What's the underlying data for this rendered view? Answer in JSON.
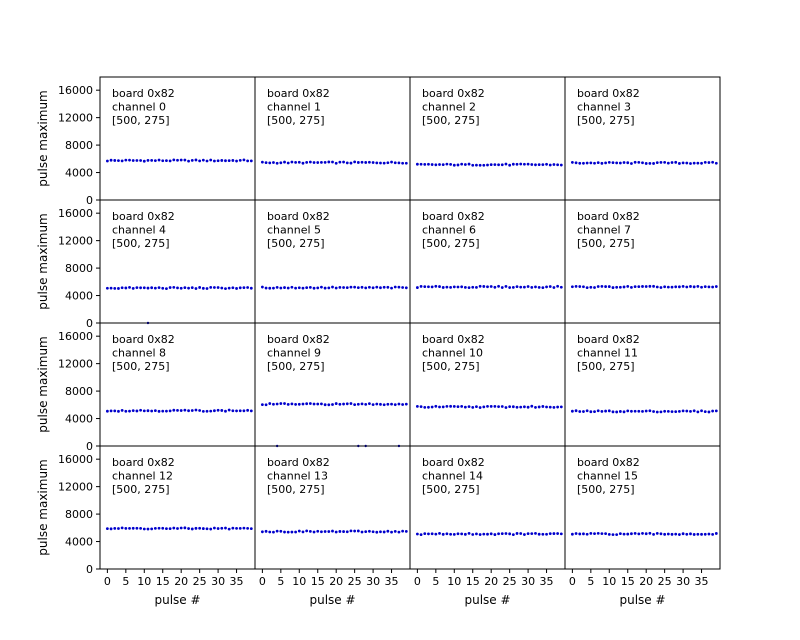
{
  "chart_data": {
    "type": "scatter",
    "layout": {
      "rows": 4,
      "cols": 4
    },
    "xlabel": "pulse #",
    "ylabel": "pulse maximum",
    "xlim": [
      -2,
      40
    ],
    "ylim": [
      0,
      17920
    ],
    "xticks": [
      0,
      5,
      10,
      15,
      20,
      25,
      30,
      35
    ],
    "yticks": [
      0,
      4000,
      8000,
      12000,
      16000
    ],
    "yticklabels": [
      "0",
      "4000",
      "8000",
      "12000",
      "16000"
    ],
    "marker_color": "#0000cc",
    "n_pulses": 40,
    "panels": [
      {
        "channel": 0,
        "board": "board 0x82",
        "label": "channel 0",
        "range": "[500, 275]",
        "baseline": 5750,
        "amplitude": 100,
        "outliers": []
      },
      {
        "channel": 1,
        "board": "board 0x82",
        "label": "channel 1",
        "range": "[500, 275]",
        "baseline": 5450,
        "amplitude": 100,
        "outliers": []
      },
      {
        "channel": 2,
        "board": "board 0x82",
        "label": "channel 2",
        "range": "[500, 275]",
        "baseline": 5150,
        "amplitude": 100,
        "outliers": []
      },
      {
        "channel": 3,
        "board": "board 0x82",
        "label": "channel 3",
        "range": "[500, 275]",
        "baseline": 5400,
        "amplitude": 100,
        "outliers": []
      },
      {
        "channel": 4,
        "board": "board 0x82",
        "label": "channel 4",
        "range": "[500, 275]",
        "baseline": 5100,
        "amplitude": 100,
        "outliers": [
          {
            "pulse": 11,
            "value": 0
          }
        ]
      },
      {
        "channel": 5,
        "board": "board 0x82",
        "label": "channel 5",
        "range": "[500, 275]",
        "baseline": 5150,
        "amplitude": 100,
        "outliers": []
      },
      {
        "channel": 6,
        "board": "board 0x82",
        "label": "channel 6",
        "range": "[500, 275]",
        "baseline": 5250,
        "amplitude": 100,
        "outliers": []
      },
      {
        "channel": 7,
        "board": "board 0x82",
        "label": "channel 7",
        "range": "[500, 275]",
        "baseline": 5250,
        "amplitude": 100,
        "outliers": []
      },
      {
        "channel": 8,
        "board": "board 0x82",
        "label": "channel 8",
        "range": "[500, 275]",
        "baseline": 5150,
        "amplitude": 100,
        "outliers": []
      },
      {
        "channel": 9,
        "board": "board 0x82",
        "label": "channel 9",
        "range": "[500, 275]",
        "baseline": 6100,
        "amplitude": 100,
        "outliers": [
          {
            "pulse": 4,
            "value": 0
          },
          {
            "pulse": 26,
            "value": 0
          },
          {
            "pulse": 28,
            "value": 0
          },
          {
            "pulse": 37,
            "value": 0
          }
        ]
      },
      {
        "channel": 10,
        "board": "board 0x82",
        "label": "channel 10",
        "range": "[500, 275]",
        "baseline": 5700,
        "amplitude": 100,
        "outliers": []
      },
      {
        "channel": 11,
        "board": "board 0x82",
        "label": "channel 11",
        "range": "[500, 275]",
        "baseline": 5050,
        "amplitude": 100,
        "outliers": []
      },
      {
        "channel": 12,
        "board": "board 0x82",
        "label": "channel 12",
        "range": "[500, 275]",
        "baseline": 5900,
        "amplitude": 100,
        "outliers": []
      },
      {
        "channel": 13,
        "board": "board 0x82",
        "label": "channel 13",
        "range": "[500, 275]",
        "baseline": 5450,
        "amplitude": 100,
        "outliers": []
      },
      {
        "channel": 14,
        "board": "board 0x82",
        "label": "channel 14",
        "range": "[500, 275]",
        "baseline": 5100,
        "amplitude": 100,
        "outliers": []
      },
      {
        "channel": 15,
        "board": "board 0x82",
        "label": "channel 15",
        "range": "[500, 275]",
        "baseline": 5100,
        "amplitude": 100,
        "outliers": []
      }
    ]
  }
}
